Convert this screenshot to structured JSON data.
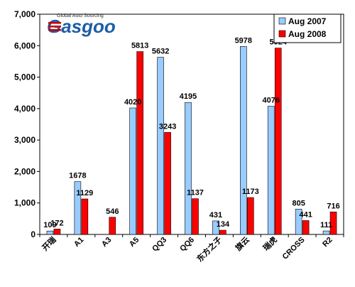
{
  "logo": {
    "tagline": "Global Auto Sourcing",
    "brand": "Gasgoo"
  },
  "colors": {
    "series_2007": "#99ccff",
    "series_2008": "#ff0000",
    "brand_red": "#cc0000",
    "brand_blue": "#1f5ca8"
  },
  "chart_data": {
    "type": "bar",
    "categories": [
      "开瑞",
      "A1",
      "A3",
      "A5",
      "QQ3",
      "QQ6",
      "东方之子",
      "旗云",
      "瑞虎",
      "CROSS",
      "R2"
    ],
    "series": [
      {
        "name": "Aug 2007",
        "values": [
          109,
          1678,
          0,
          4020,
          5632,
          4195,
          431,
          5978,
          4076,
          805,
          111
        ],
        "labels": [
          "109",
          "1678",
          "",
          "4020",
          "5632",
          "4195",
          "431",
          "5978",
          "4076",
          "805",
          "111"
        ]
      },
      {
        "name": "Aug 2008",
        "values": [
          172,
          1129,
          546,
          5813,
          3243,
          1137,
          134,
          1173,
          5924,
          441,
          716
        ],
        "labels": [
          "172",
          "1129",
          "546",
          "5813",
          "3243",
          "1137",
          "134",
          "1173",
          "5924",
          "441",
          "716"
        ]
      }
    ],
    "ylim": [
      0,
      7000
    ],
    "yticks": [
      "0",
      "1,000",
      "2,000",
      "3,000",
      "4,000",
      "5,000",
      "6,000",
      "7,000"
    ],
    "legend_position": "top-right",
    "grid": false
  }
}
